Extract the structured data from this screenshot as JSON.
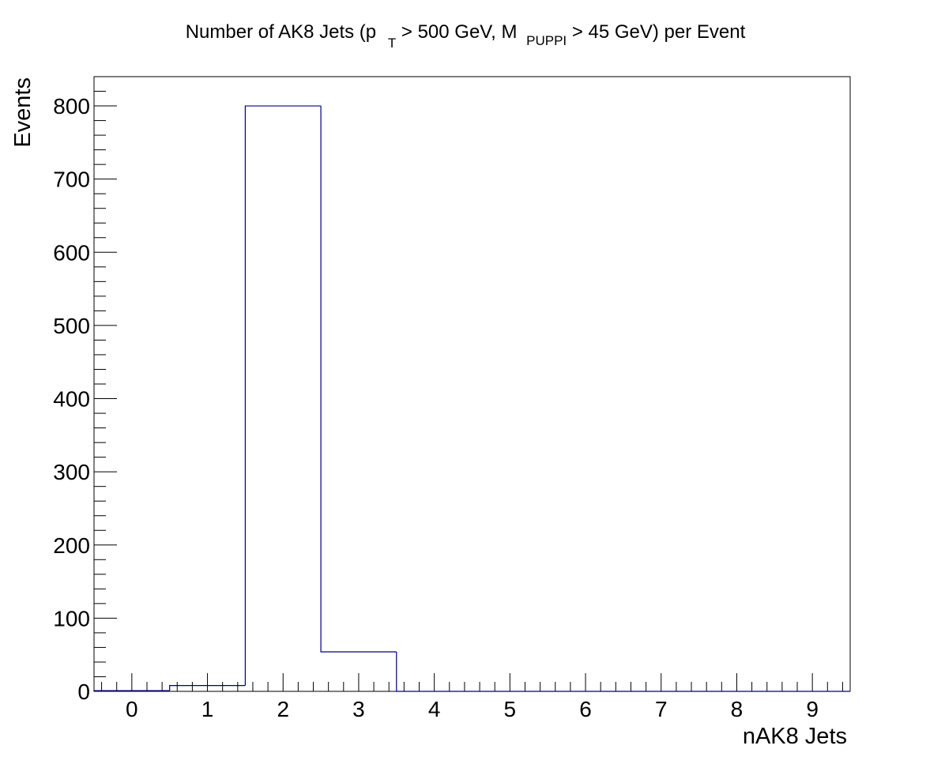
{
  "chart_data": {
    "type": "bar",
    "style": "step-histogram",
    "title": {
      "part1": "Number of AK8 Jets (p",
      "sub1": "T",
      "part2": " > 500 GeV, M",
      "sub2": "PUPPI",
      "part3": " > 45 GeV) per Event"
    },
    "xlabel": "nAK8 Jets",
    "ylabel": "Events",
    "categories": [
      "0",
      "1",
      "2",
      "3",
      "4",
      "5",
      "6",
      "7",
      "8",
      "9"
    ],
    "bin_edges": [
      -0.5,
      0.5,
      1.5,
      2.5,
      3.5,
      4.5,
      5.5,
      6.5,
      7.5,
      8.5,
      9.5
    ],
    "values": [
      1,
      8,
      800,
      54,
      0,
      0,
      0,
      0,
      0,
      0
    ],
    "xlim": [
      -0.5,
      9.5
    ],
    "ylim": [
      0,
      840
    ],
    "yticks": [
      "0",
      "100",
      "200",
      "300",
      "400",
      "500",
      "600",
      "700",
      "800"
    ],
    "grid": false,
    "legend": "none",
    "colors": {
      "line": "#000080",
      "axis": "#000000"
    }
  }
}
